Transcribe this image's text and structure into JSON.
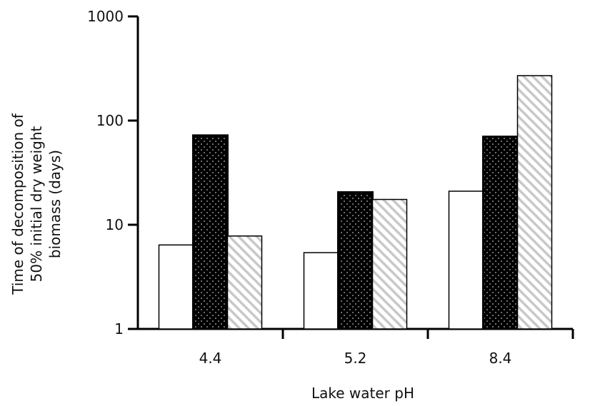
{
  "chart_data": {
    "type": "bar",
    "title": "",
    "xlabel": "Lake water pH",
    "ylabel_lines": [
      "Time of decomposition of",
      "50% initial dry weight",
      "biomass (days)"
    ],
    "yscale": "log",
    "ylim": [
      1,
      1000
    ],
    "yticks": [
      "1",
      "10",
      "100",
      "1000"
    ],
    "categories": [
      "4.4",
      "5.2",
      "8.4"
    ],
    "series": [
      {
        "style": "white",
        "values": [
          6.4,
          5.4,
          21
        ]
      },
      {
        "style": "black-dotted",
        "values": [
          72,
          20.5,
          70
        ]
      },
      {
        "style": "gray-hatched",
        "values": [
          7.8,
          17.5,
          270
        ]
      }
    ],
    "grid": false,
    "legend": "none"
  }
}
